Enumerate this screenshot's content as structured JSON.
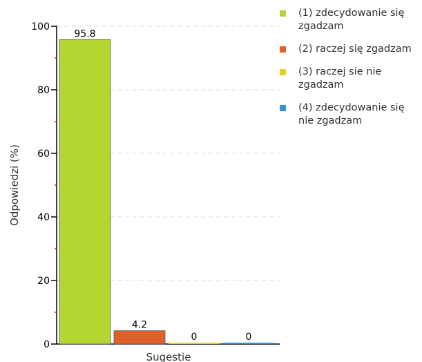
{
  "chart_data": {
    "type": "bar",
    "categories": [
      "(1) zdecydowanie się zgadzam",
      "(2) raczej się zgadzam",
      "(3) raczej sie nie zgadzam",
      "(4) zdecydowanie się nie zgadzam"
    ],
    "values": [
      95.8,
      4.2,
      0,
      0
    ],
    "value_labels": [
      "95.8",
      "4.2",
      "0",
      "0"
    ],
    "colors": [
      "#b3d631",
      "#e0602a",
      "#e6d21c",
      "#2f8fe0"
    ],
    "xlabel": "Sugestie",
    "ylabel": "Odpowiedzi (%)",
    "ylim": [
      0,
      100
    ],
    "yticks": [
      0,
      20,
      40,
      60,
      80,
      100
    ],
    "grid": true,
    "legend_position": "right"
  }
}
